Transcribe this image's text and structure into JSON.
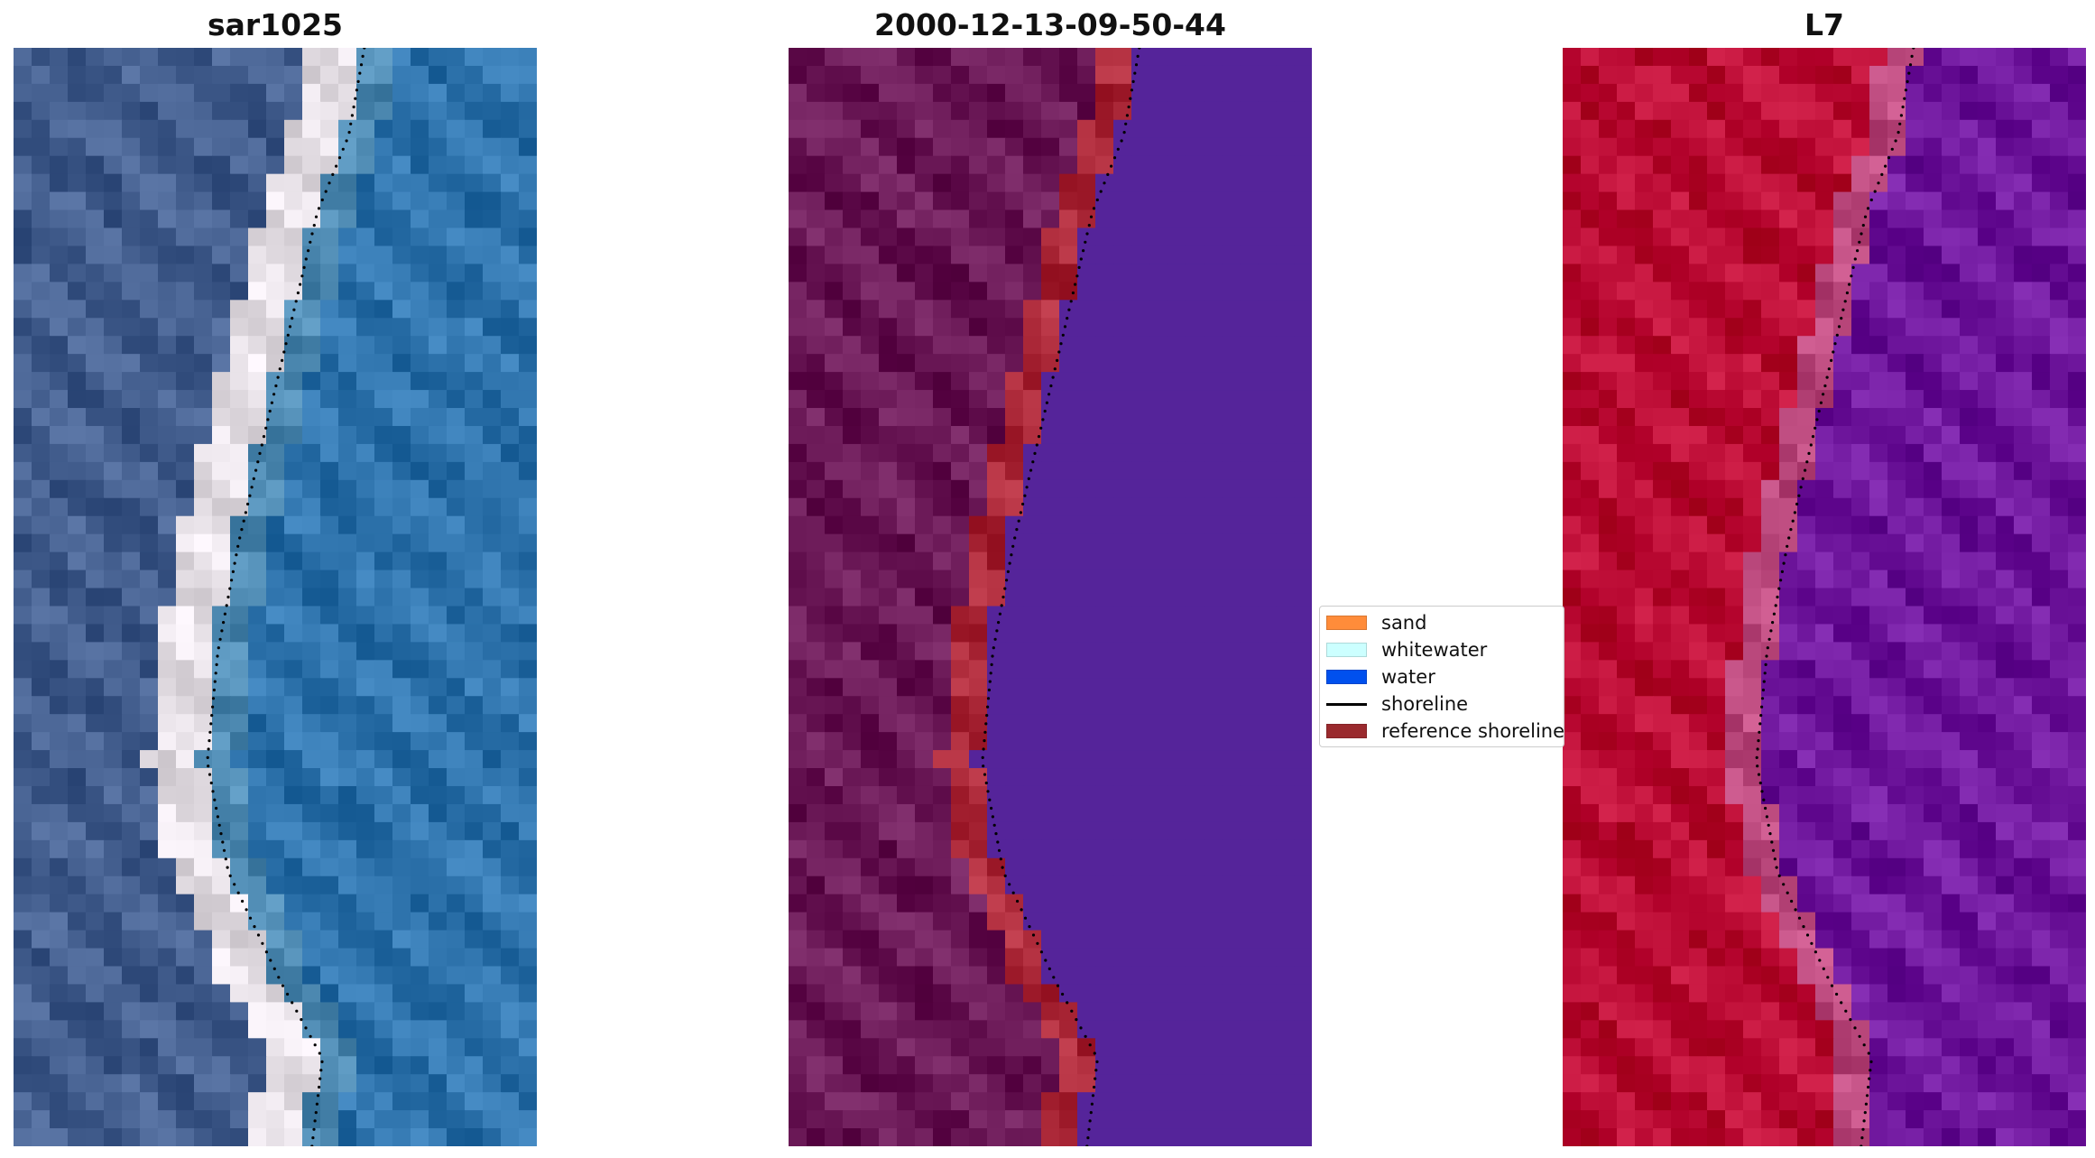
{
  "panels": [
    {
      "title": "sar1025",
      "style": "rgb"
    },
    {
      "title": "2000-12-13-09-50-44",
      "style": "classified"
    },
    {
      "title": "L7",
      "style": "false-color"
    }
  ],
  "legend": {
    "items": [
      {
        "label": "sand",
        "color": "#ff8c3a",
        "kind": "patch"
      },
      {
        "label": "whitewater",
        "color": "#ccffff",
        "kind": "patch"
      },
      {
        "label": "water",
        "color": "#0050ee",
        "kind": "patch"
      },
      {
        "label": "shoreline",
        "color": "#000000",
        "kind": "line"
      },
      {
        "label": "reference shoreline",
        "color": "#9a2a2e",
        "kind": "patch"
      }
    ]
  },
  "colors": {
    "rgb_land": "#4f6a9a",
    "rgb_sand": "#f2ecf2",
    "rgb_water": "#3a7fb8",
    "class_land": "#762462",
    "class_ref": "#b83545",
    "class_water": "#55249a",
    "fc_land": "#c6163f",
    "fc_edge": "#c8568a",
    "fc_water": "#7a22a8"
  }
}
